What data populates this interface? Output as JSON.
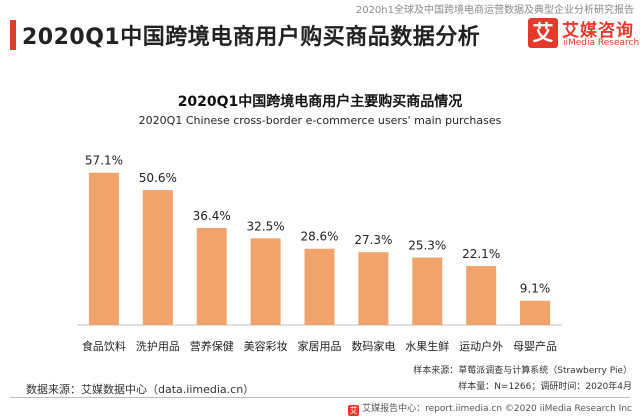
{
  "header": {
    "report_name": "2020h1全球及中国跨境电商运营数据及典型企业分析研究报告",
    "title": "2020Q1中国跨境电商用户购买商品数据分析"
  },
  "logo": {
    "glyph": "艾",
    "name_cn": "艾媒咨询",
    "name_en": "iiMedia Research"
  },
  "colors": {
    "bar": "#f0a36b",
    "accent": "#e4392b",
    "axis": "#bfbfbf"
  },
  "chart_data": {
    "type": "bar",
    "title": "2020Q1中国跨境电商用户主要购买商品情况",
    "subtitle": "2020Q1 Chinese cross-border e-commerce users' main purchases",
    "categories": [
      "食品饮料",
      "洗护用品",
      "营养保健",
      "美容彩妆",
      "家居用品",
      "数码家电",
      "水果生鲜",
      "运动户外",
      "母婴产品"
    ],
    "values": [
      57.1,
      50.6,
      36.4,
      32.5,
      28.6,
      27.3,
      25.3,
      22.1,
      9.1
    ],
    "value_labels": [
      "57.1%",
      "50.6%",
      "36.4%",
      "32.5%",
      "28.6%",
      "27.3%",
      "25.3%",
      "22.1%",
      "9.1%"
    ],
    "unit": "%",
    "ylim": [
      0,
      60
    ],
    "grid": false,
    "legend": "none"
  },
  "footnotes": {
    "source": "数据来源：艾媒数据中心（data.iimedia.cn）",
    "sample_source": "样本来源：草莓派调查与计算系统（Strawberry Pie）",
    "sample_info": "样本量：N=1266；调研时间：2020年4月"
  },
  "footer": {
    "logo_glyph": "艾",
    "text": "艾媒报告中心：report.iimedia.cn  ©2020  iiMedia Research  Inc"
  }
}
